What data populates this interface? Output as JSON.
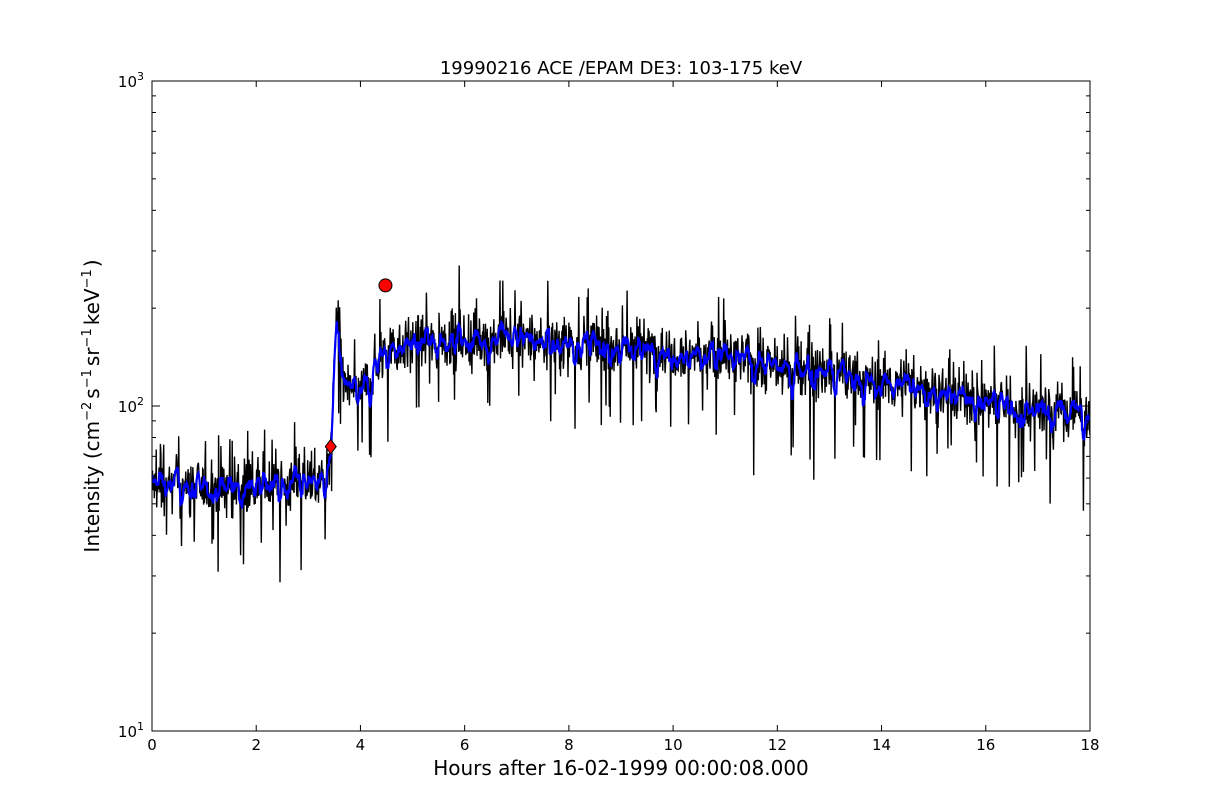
{
  "chart_data": {
    "type": "line",
    "title": "19990216 ACE /EPAM DE3: 103-175 keV",
    "xlabel": "Hours after 16-02-1999 00:00:08.000",
    "ylabel_parts": {
      "lead": "Intensity (cm",
      "exp1": "−2",
      "mid1": "s",
      "exp2": "−1",
      "mid2": "sr",
      "exp3": "−1",
      "mid3": "keV",
      "exp4": "−1",
      "tail": ")"
    },
    "x_ticks": [
      {
        "value": 0,
        "label": "0"
      },
      {
        "value": 2,
        "label": "2"
      },
      {
        "value": 4,
        "label": "4"
      },
      {
        "value": 6,
        "label": "6"
      },
      {
        "value": 8,
        "label": "8"
      },
      {
        "value": 10,
        "label": "10"
      },
      {
        "value": 12,
        "label": "12"
      },
      {
        "value": 14,
        "label": "14"
      },
      {
        "value": 16,
        "label": "16"
      },
      {
        "value": 18,
        "label": "18"
      }
    ],
    "y_ticks": [
      {
        "value": 10,
        "base": "10",
        "exp": "1"
      },
      {
        "value": 100,
        "base": "10",
        "exp": "2"
      },
      {
        "value": 1000,
        "base": "10",
        "exp": "3"
      }
    ],
    "xlim": [
      0,
      18
    ],
    "ylim": [
      10,
      1000
    ],
    "yscale": "log",
    "grid": false,
    "colors": {
      "raw": "#000000",
      "smoothed": "#0000ff",
      "marker": "#ff0000"
    },
    "envelope": [
      {
        "x": 0.0,
        "y": 57
      },
      {
        "x": 1.0,
        "y": 56
      },
      {
        "x": 2.0,
        "y": 57
      },
      {
        "x": 3.0,
        "y": 58
      },
      {
        "x": 3.4,
        "y": 60
      },
      {
        "x": 3.47,
        "y": 110
      },
      {
        "x": 3.55,
        "y": 185
      },
      {
        "x": 3.7,
        "y": 115
      },
      {
        "x": 4.0,
        "y": 110
      },
      {
        "x": 4.5,
        "y": 150
      },
      {
        "x": 5.0,
        "y": 158
      },
      {
        "x": 6.0,
        "y": 160
      },
      {
        "x": 8.0,
        "y": 158
      },
      {
        "x": 10.0,
        "y": 148
      },
      {
        "x": 11.5,
        "y": 137
      },
      {
        "x": 13.0,
        "y": 125
      },
      {
        "x": 15.0,
        "y": 112
      },
      {
        "x": 16.5,
        "y": 100
      },
      {
        "x": 18.0,
        "y": 95
      }
    ],
    "markers": [
      {
        "x": 3.43,
        "y": 75,
        "shape": "diamond"
      },
      {
        "x": 4.48,
        "y": 235,
        "shape": "circle"
      }
    ]
  }
}
